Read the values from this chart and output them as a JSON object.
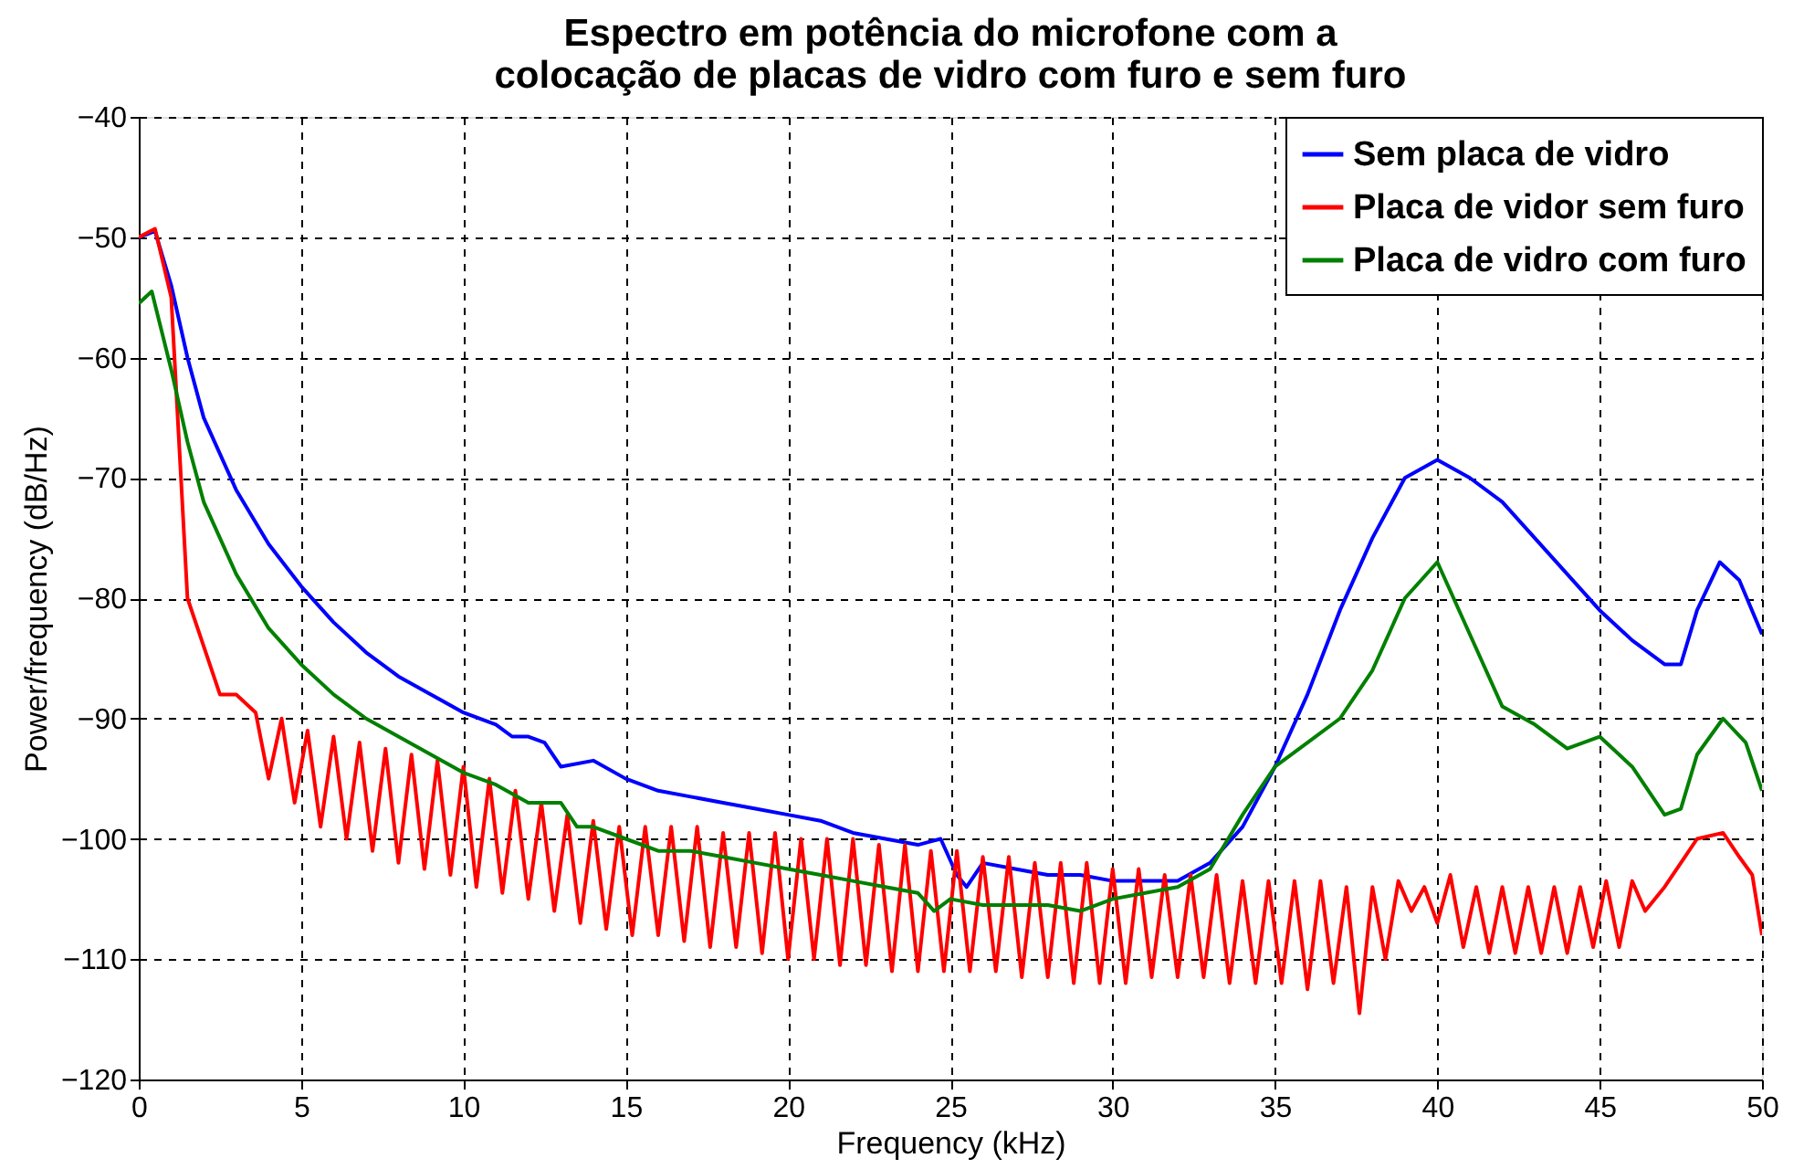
{
  "chart_data": {
    "type": "line",
    "title": "Espectro em potência do microfone com a colocação de placas de vidro com furo e sem furo",
    "xlabel": "Frequency (kHz)",
    "ylabel": "Power/frequency (dB/Hz)",
    "xlim": [
      0,
      50
    ],
    "ylim": [
      -120,
      -40
    ],
    "xticks": [
      0,
      5,
      10,
      15,
      20,
      25,
      30,
      35,
      40,
      45,
      50
    ],
    "yticks": [
      -120,
      -110,
      -100,
      -90,
      -80,
      -70,
      -60,
      -50,
      -40
    ],
    "grid": true,
    "legend": "top right",
    "line_style": "solid",
    "marker": "none",
    "series": [
      {
        "name": "Sem placa de vidro",
        "color": "#0000ff",
        "x": [
          0,
          0.5,
          1,
          1.5,
          2,
          3,
          4,
          5,
          6,
          7,
          8,
          9,
          10,
          11,
          11.5,
          12,
          12.5,
          13,
          14,
          15,
          16,
          17,
          18,
          19,
          20,
          21,
          22,
          23,
          24,
          24.7,
          25.2,
          25.5,
          26,
          27,
          28,
          29,
          30,
          31,
          32,
          33,
          34,
          35,
          36,
          37,
          38,
          39,
          40,
          41,
          42,
          43,
          44,
          45,
          46,
          47,
          47.5,
          48,
          48.7,
          49.3,
          50
        ],
        "values": [
          -50,
          -49.5,
          -54,
          -60,
          -65,
          -71,
          -75.5,
          -79,
          -82,
          -84.5,
          -86.5,
          -88,
          -89.5,
          -90.5,
          -91.5,
          -91.5,
          -92,
          -94,
          -93.5,
          -95,
          -96,
          -96.5,
          -97,
          -97.5,
          -98,
          -98.5,
          -99.5,
          -100,
          -100.5,
          -100,
          -103,
          -104,
          -102,
          -102.5,
          -103,
          -103,
          -103.5,
          -103.5,
          -103.5,
          -102,
          -99,
          -94,
          -88,
          -81,
          -75,
          -70,
          -68.5,
          -70,
          -72,
          -75,
          -78,
          -81,
          -83.5,
          -85.5,
          -85.5,
          -81,
          -77,
          -78.5,
          -83
        ]
      },
      {
        "name": "Placa de vidor sem furo",
        "color": "#ff0000",
        "x": [
          0,
          0.5,
          1,
          1.3,
          1.5,
          2,
          2.5,
          3,
          3.6,
          4.0,
          4.4,
          4.8,
          5.2,
          5.6,
          6.0,
          6.4,
          6.8,
          7.2,
          7.6,
          8.0,
          8.4,
          8.8,
          9.2,
          9.6,
          10.0,
          10.4,
          10.8,
          11.2,
          11.6,
          12.0,
          12.4,
          12.8,
          13.2,
          13.6,
          14.0,
          14.4,
          14.8,
          15.2,
          15.6,
          16.0,
          16.4,
          16.8,
          17.2,
          17.6,
          18.0,
          18.4,
          18.8,
          19.2,
          19.6,
          20.0,
          20.4,
          20.8,
          21.2,
          21.6,
          22.0,
          22.4,
          22.8,
          23.2,
          23.6,
          24.0,
          24.4,
          24.8,
          25.2,
          25.6,
          26.0,
          26.4,
          26.8,
          27.2,
          27.6,
          28.0,
          28.4,
          28.8,
          29.2,
          29.6,
          30.0,
          30.4,
          30.8,
          31.2,
          31.6,
          32.0,
          32.4,
          32.8,
          33.2,
          33.6,
          34.0,
          34.4,
          34.8,
          35.2,
          35.6,
          36.0,
          36.4,
          36.8,
          37.2,
          37.6,
          38.0,
          38.4,
          38.8,
          39.2,
          39.6,
          40.0,
          40.4,
          40.8,
          41.2,
          41.6,
          42.0,
          42.4,
          42.8,
          43.2,
          43.6,
          44.0,
          44.4,
          44.8,
          45.2,
          45.6,
          46.0,
          46.4,
          47.0,
          47.5,
          48.0,
          48.8,
          49.3,
          49.7,
          50
        ],
        "values": [
          -50,
          -49.3,
          -55,
          -70,
          -80,
          -84,
          -88,
          -88,
          -89.5,
          -95,
          -90,
          -97,
          -91,
          -99,
          -91.5,
          -100,
          -92,
          -101,
          -92.5,
          -102,
          -93,
          -102.5,
          -93.5,
          -103,
          -94,
          -104,
          -95,
          -104.5,
          -96,
          -105,
          -97,
          -106,
          -98,
          -107,
          -98.5,
          -107.5,
          -99,
          -108,
          -99,
          -108,
          -99,
          -108.5,
          -99,
          -109,
          -99.5,
          -109,
          -99.5,
          -109.5,
          -99.5,
          -110,
          -100,
          -110,
          -100,
          -110.5,
          -100,
          -110.5,
          -100.5,
          -111,
          -100.5,
          -111,
          -101,
          -111,
          -101,
          -111,
          -101.5,
          -111,
          -101.5,
          -111.5,
          -102,
          -111.5,
          -102,
          -112,
          -102,
          -112,
          -102.5,
          -112,
          -102.5,
          -111.5,
          -103,
          -111.5,
          -103,
          -111.5,
          -103,
          -112,
          -103.5,
          -112,
          -103.5,
          -112,
          -103.5,
          -112.5,
          -103.5,
          -112,
          -104,
          -114.5,
          -104,
          -110,
          -103.5,
          -106,
          -104,
          -107,
          -103,
          -109,
          -104,
          -109.5,
          -104,
          -109.5,
          -104,
          -109.5,
          -104,
          -109.5,
          -104,
          -109,
          -103.5,
          -109,
          -103.5,
          -106,
          -104,
          -102,
          -100,
          -99.5,
          -101.5,
          -103,
          -108
        ]
      },
      {
        "name": "Placa de vidro com furo",
        "color": "#008000",
        "x": [
          0,
          0.4,
          1,
          1.5,
          2,
          3,
          4,
          5,
          6,
          7,
          8,
          9,
          10,
          11,
          12,
          13,
          13.5,
          14,
          15,
          16,
          17,
          18,
          19,
          20,
          21,
          22,
          23,
          24,
          24.5,
          25,
          26,
          27,
          28,
          29,
          30,
          31,
          32,
          33,
          34,
          35,
          36,
          37,
          38,
          39,
          40,
          41,
          42,
          43,
          44,
          45,
          46,
          47,
          47.5,
          48,
          48.8,
          49.5,
          50
        ],
        "values": [
          -55.5,
          -54.5,
          -61,
          -67,
          -72,
          -78,
          -82.5,
          -85.5,
          -88,
          -90,
          -91.5,
          -93,
          -94.5,
          -95.5,
          -97,
          -97,
          -99,
          -99,
          -100,
          -101,
          -101,
          -101.5,
          -102,
          -102.5,
          -103,
          -103.5,
          -104,
          -104.5,
          -106,
          -105,
          -105.5,
          -105.5,
          -105.5,
          -106,
          -105,
          -104.5,
          -104,
          -102.5,
          -98,
          -94,
          -92,
          -90,
          -86,
          -80,
          -77,
          -83,
          -89,
          -90.5,
          -92.5,
          -91.5,
          -94,
          -98,
          -97.5,
          -93,
          -90,
          -92,
          -96
        ]
      }
    ]
  }
}
